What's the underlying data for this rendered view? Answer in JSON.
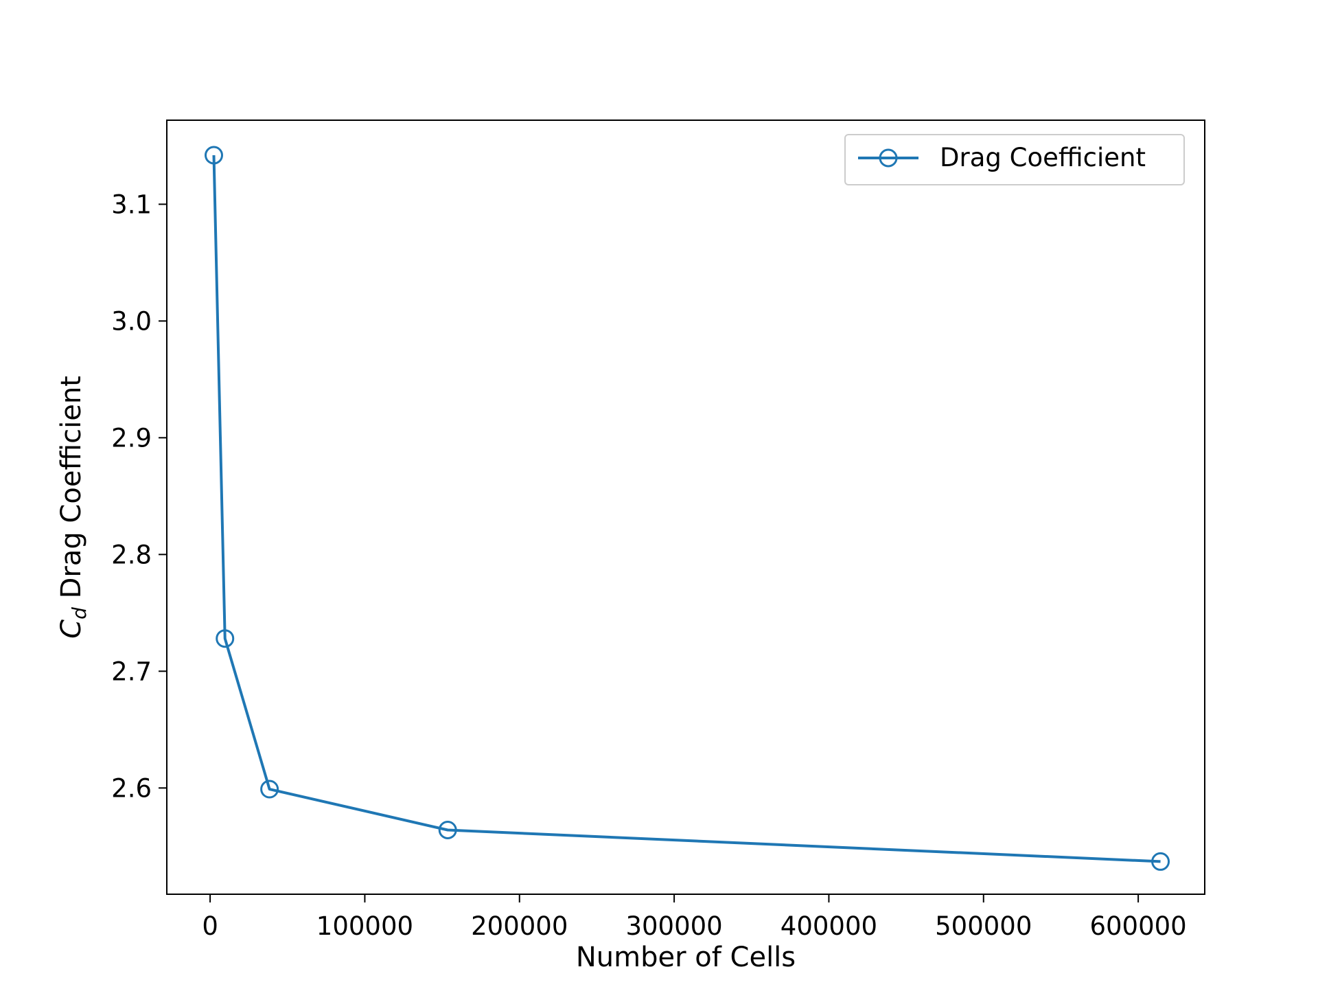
{
  "chart_data": {
    "type": "line",
    "title": "",
    "xlabel": "Number of Cells",
    "ylabel_symbol": "C",
    "ylabel_subscript": "d",
    "ylabel_text": " Drag Coefficient",
    "xlim": [
      -28000,
      643000
    ],
    "ylim": [
      2.509,
      3.172
    ],
    "xticks": [
      0,
      100000,
      200000,
      300000,
      400000,
      500000,
      600000
    ],
    "xtick_labels": [
      "0",
      "100000",
      "200000",
      "300000",
      "400000",
      "500000",
      "600000"
    ],
    "yticks": [
      2.6,
      2.7,
      2.8,
      2.9,
      3.0,
      3.1
    ],
    "ytick_labels": [
      "2.6",
      "2.7",
      "2.8",
      "2.9",
      "3.0",
      "3.1"
    ],
    "grid": false,
    "legend_position": "top-right",
    "series": [
      {
        "name": "Drag Coefficient",
        "color": "#1f77b4",
        "marker": "open-circle",
        "x": [
          2400,
          9600,
          38400,
          153600,
          614400
        ],
        "y": [
          3.142,
          2.728,
          2.599,
          2.564,
          2.537
        ]
      }
    ]
  }
}
